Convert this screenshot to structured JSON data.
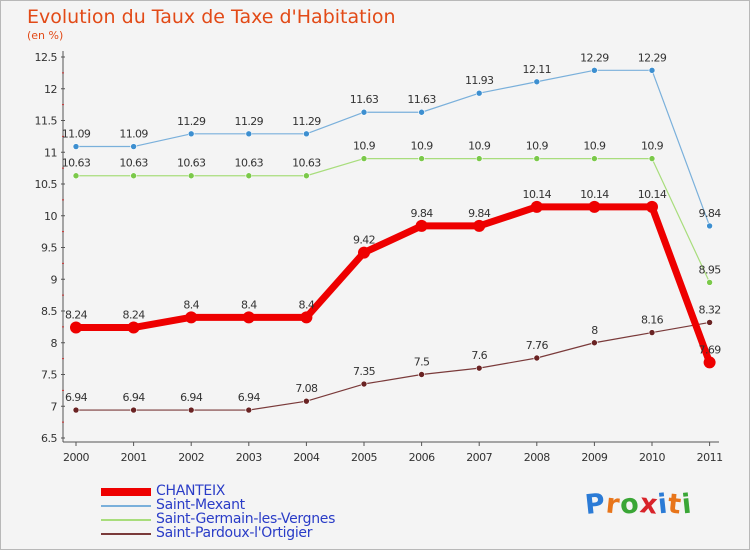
{
  "header": {
    "title": "Evolution du Taux de Taxe d'Habitation",
    "subtitle": "(en %)"
  },
  "logo": {
    "text": "Proxiti",
    "colors": [
      "#2b7bd6",
      "#e8751a",
      "#3aa636",
      "#d8232a",
      "#2b7bd6",
      "#e8751a",
      "#3aa636"
    ]
  },
  "chart_data": {
    "type": "line",
    "x": [
      "2000",
      "2001",
      "2002",
      "2003",
      "2004",
      "2005",
      "2006",
      "2007",
      "2008",
      "2009",
      "2010",
      "2011"
    ],
    "y_ticks": [
      "6.5",
      "7",
      "7.5",
      "8",
      "8.5",
      "9",
      "9.5",
      "10",
      "10.5",
      "11",
      "11.5",
      "12",
      "12.5"
    ],
    "ylim": [
      6.5,
      12.5
    ],
    "grid": false,
    "legend": "bottom-left",
    "series": [
      {
        "name": "Saint-Mexant",
        "color": "#7ab0db",
        "marker": "#3d8fd0",
        "width": 1.2,
        "point_r": 3,
        "values": [
          11.09,
          11.09,
          11.29,
          11.29,
          11.29,
          11.63,
          11.63,
          11.93,
          12.11,
          12.29,
          12.29,
          9.84
        ],
        "labels": [
          "11.09",
          "11.09",
          "11.29",
          "11.29",
          "11.29",
          "11.63",
          "11.63",
          "11.93",
          "12.11",
          "12.29",
          "12.29",
          "9.84"
        ]
      },
      {
        "name": "Saint-Germain-les-Vergnes",
        "color": "#a8dd7c",
        "marker": "#7bc94a",
        "width": 1.2,
        "point_r": 3,
        "values": [
          10.63,
          10.63,
          10.63,
          10.63,
          10.63,
          10.9,
          10.9,
          10.9,
          10.9,
          10.9,
          10.9,
          8.95
        ],
        "labels": [
          "10.63",
          "10.63",
          "10.63",
          "10.63",
          "10.63",
          "10.9",
          "10.9",
          "10.9",
          "10.9",
          "10.9",
          "10.9",
          "8.95"
        ]
      },
      {
        "name": "Saint-Pardoux-l'Ortigier",
        "color": "#7a3a3a",
        "marker": "#6a2323",
        "width": 1.2,
        "point_r": 3,
        "values": [
          6.94,
          6.94,
          6.94,
          6.94,
          7.08,
          7.35,
          7.5,
          7.6,
          7.76,
          8.0,
          8.16,
          8.32
        ],
        "labels": [
          "6.94",
          "6.94",
          "6.94",
          "6.94",
          "7.08",
          "7.35",
          "7.5",
          "7.6",
          "7.76",
          "8",
          "8.16",
          "8.32"
        ]
      },
      {
        "name": "CHANTEIX",
        "color": "#ee0000",
        "marker": "#ee0000",
        "width": 7,
        "point_r": 6,
        "values": [
          8.24,
          8.24,
          8.4,
          8.4,
          8.4,
          9.42,
          9.84,
          9.84,
          10.14,
          10.14,
          10.14,
          7.69
        ],
        "labels": [
          "8.24",
          "8.24",
          "8.4",
          "8.4",
          "8.4",
          "9.42",
          "9.84",
          "9.84",
          "10.14",
          "10.14",
          "10.14",
          "7.69"
        ]
      }
    ],
    "legend_order": [
      "CHANTEIX",
      "Saint-Mexant",
      "Saint-Germain-les-Vergnes",
      "Saint-Pardoux-l'Ortigier"
    ]
  }
}
